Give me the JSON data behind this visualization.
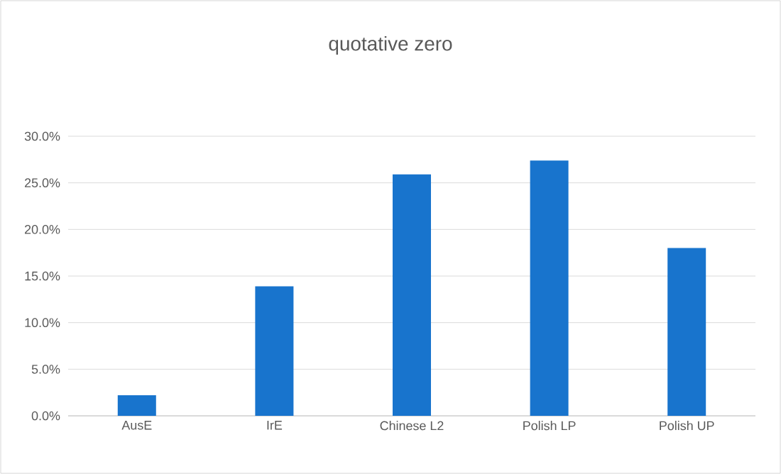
{
  "chart_data": {
    "type": "bar",
    "title": "quotative zero",
    "categories": [
      "AusE",
      "IrE",
      "Chinese L2",
      "Polish LP",
      "Polish UP"
    ],
    "values": [
      2.2,
      13.9,
      25.9,
      27.4,
      18.0
    ],
    "color": "#1874cd",
    "ylim": [
      0,
      30
    ],
    "yticks": [
      {
        "value": 0,
        "label": "0.0%"
      },
      {
        "value": 5,
        "label": "5.0%"
      },
      {
        "value": 10,
        "label": "10.0%"
      },
      {
        "value": 15,
        "label": "15.0%"
      },
      {
        "value": 20,
        "label": "20.0%"
      },
      {
        "value": 25,
        "label": "25.0%"
      },
      {
        "value": 30,
        "label": "30.0%"
      }
    ],
    "grid": "y"
  }
}
